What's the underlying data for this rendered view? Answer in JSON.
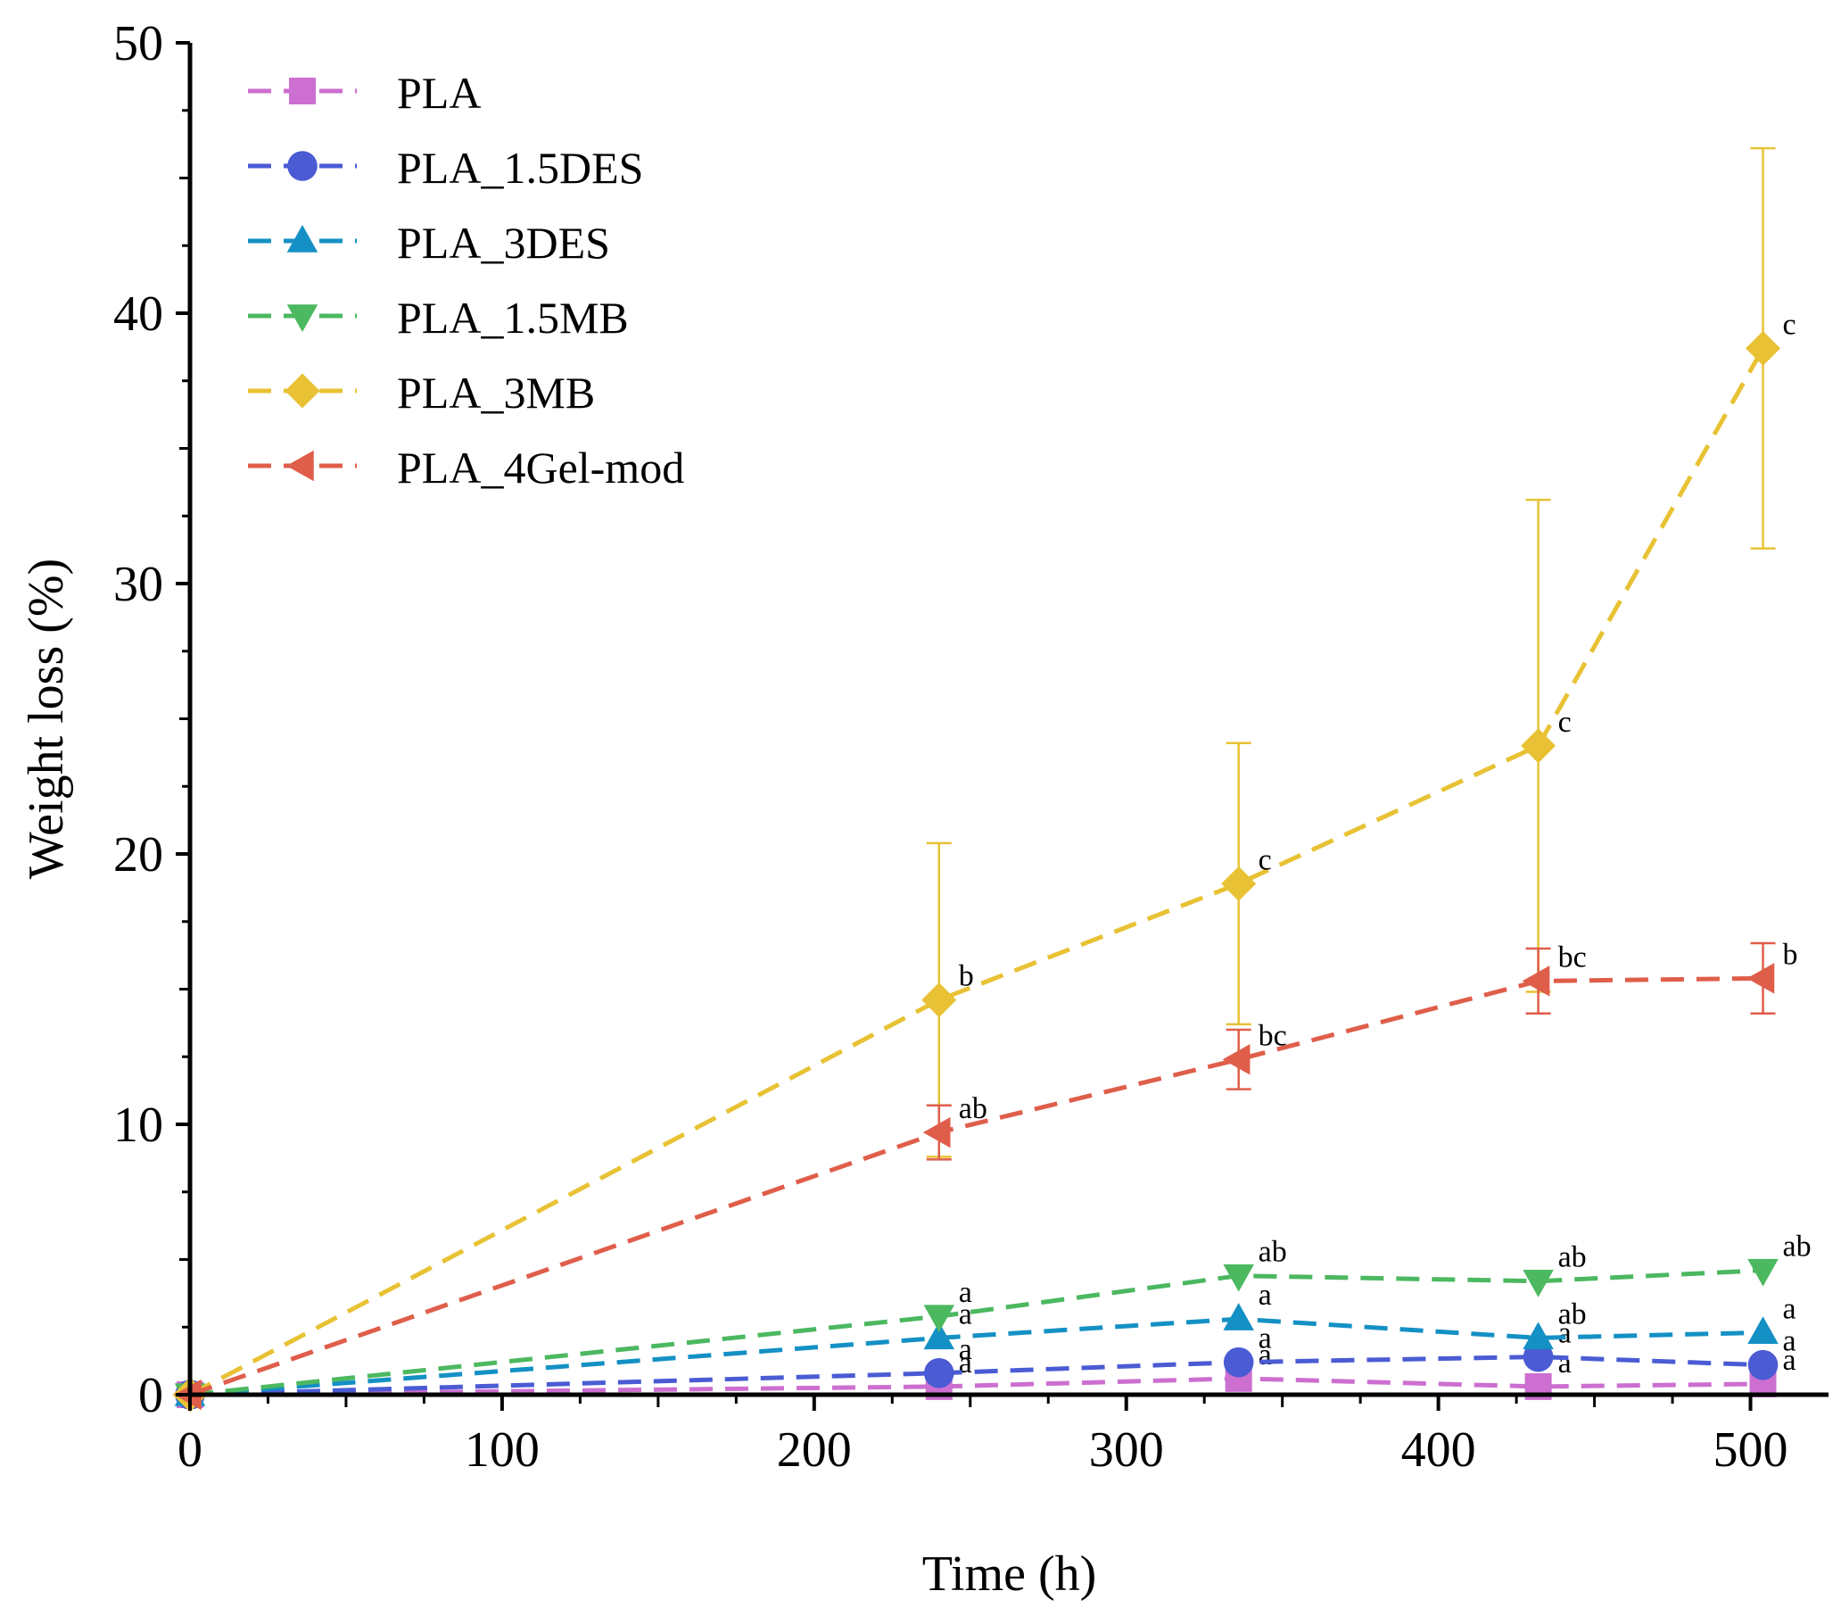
{
  "chart_data": {
    "type": "line",
    "title": "",
    "xlabel": "Time (h)",
    "ylabel": "Weight loss (%)",
    "xlim": [
      0,
      525
    ],
    "ylim": [
      0,
      50
    ],
    "xticks": [
      0,
      100,
      200,
      300,
      400,
      500
    ],
    "yticks": [
      0,
      10,
      20,
      30,
      40,
      50
    ],
    "xtick_labels": [
      "0",
      "100",
      "200",
      "300",
      "400",
      "500"
    ],
    "ytick_labels": [
      "0",
      "10",
      "20",
      "30",
      "40",
      "50"
    ],
    "legend_position": "top-left",
    "x": [
      0,
      240,
      336,
      432,
      504
    ],
    "series": [
      {
        "name": "PLA",
        "color": "#cc6fd0",
        "marker": "square",
        "values": [
          0,
          0.3,
          0.6,
          0.3,
          0.4
        ],
        "error": [
          0,
          0,
          0,
          0,
          0
        ],
        "labels": [
          "",
          "a",
          "a",
          "a",
          "a"
        ]
      },
      {
        "name": "PLA_1.5DES",
        "color": "#4a5bd4",
        "marker": "circle",
        "values": [
          0,
          0.8,
          1.2,
          1.4,
          1.1
        ],
        "error": [
          0,
          0,
          0,
          0,
          0
        ],
        "labels": [
          "",
          "a",
          "a",
          "a",
          "a"
        ]
      },
      {
        "name": "PLA_3DES",
        "color": "#1490c4",
        "marker": "triangle-up",
        "values": [
          0,
          2.1,
          2.8,
          2.1,
          2.3
        ],
        "error": [
          0,
          0,
          0,
          0,
          0
        ],
        "labels": [
          "",
          "a",
          "a",
          "ab",
          "a"
        ]
      },
      {
        "name": "PLA_1.5MB",
        "color": "#4cb860",
        "marker": "triangle-down",
        "values": [
          0,
          2.9,
          4.4,
          4.2,
          4.6
        ],
        "error": [
          0,
          0,
          0,
          0,
          0
        ],
        "labels": [
          "",
          "a",
          "ab",
          "ab",
          "ab"
        ]
      },
      {
        "name": "PLA_3MB",
        "color": "#e8c234",
        "marker": "diamond",
        "values": [
          0,
          14.6,
          18.9,
          24.0,
          38.7
        ],
        "error": [
          0,
          5.8,
          5.2,
          9.1,
          7.4
        ],
        "labels": [
          "",
          "b",
          "c",
          "c",
          "c"
        ]
      },
      {
        "name": "PLA_4Gel-mod",
        "color": "#df5e4a",
        "marker": "triangle-left",
        "values": [
          0,
          9.7,
          12.4,
          15.3,
          15.4
        ],
        "error": [
          0,
          1.0,
          1.1,
          1.2,
          1.3
        ],
        "labels": [
          "",
          "ab",
          "bc",
          "bc",
          "b"
        ]
      }
    ]
  }
}
